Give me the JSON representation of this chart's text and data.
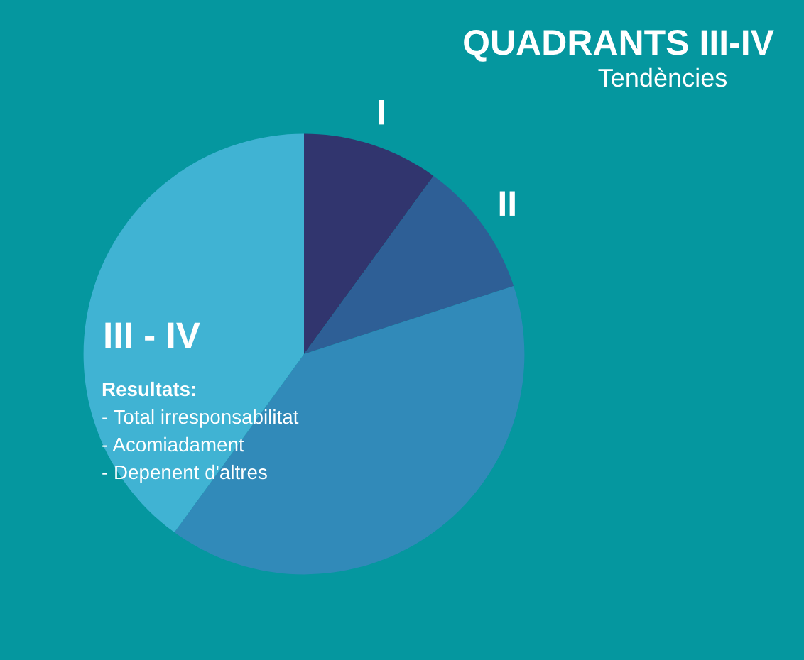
{
  "chart_data": {
    "type": "pie",
    "title": "QUADRANTS III-IV",
    "subtitle": "Tendències",
    "categories": [
      "I",
      "II",
      null,
      "III - IV"
    ],
    "values": [
      10,
      10,
      40,
      40
    ],
    "colors": [
      "#31356e",
      "#2e5f96",
      "#318ab9",
      "#40b3d3"
    ],
    "annotations": [
      "Resultats:",
      "- Total irresponsabilitat",
      "- Acomiadament",
      "- Depenent d'altres"
    ]
  }
}
